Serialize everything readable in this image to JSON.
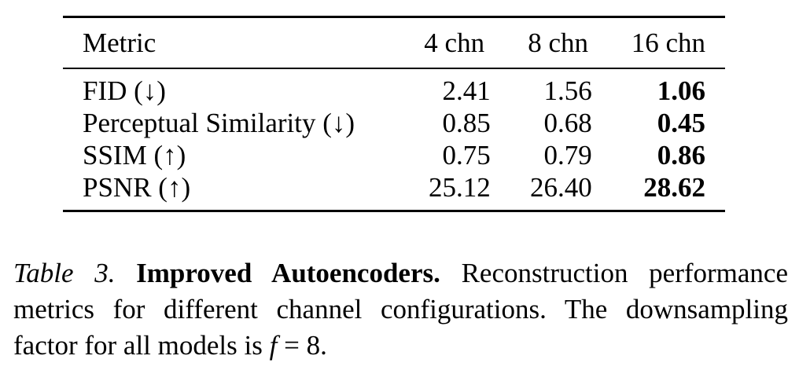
{
  "table": {
    "headers": [
      "Metric",
      "4 chn",
      "8 chn",
      "16 chn"
    ],
    "rows": [
      {
        "metric": "FID (↓)",
        "values": [
          "2.41",
          "1.56",
          "1.06"
        ]
      },
      {
        "metric": "Perceptual Similarity (↓)",
        "values": [
          "0.85",
          "0.68",
          "0.45"
        ]
      },
      {
        "metric": "SSIM (↑)",
        "values": [
          "0.75",
          "0.79",
          "0.86"
        ]
      },
      {
        "metric": "PSNR (↑)",
        "values": [
          "25.12",
          "26.40",
          "28.62"
        ]
      }
    ],
    "best_column": "16 chn"
  },
  "caption": {
    "label": "Table 3.",
    "title": "Improved Autoencoders.",
    "text_before_math": "Reconstruction performance metrics for different channel configurations. The downsampling factor for all models is",
    "math_var": "f",
    "math_rest": "= 8."
  }
}
